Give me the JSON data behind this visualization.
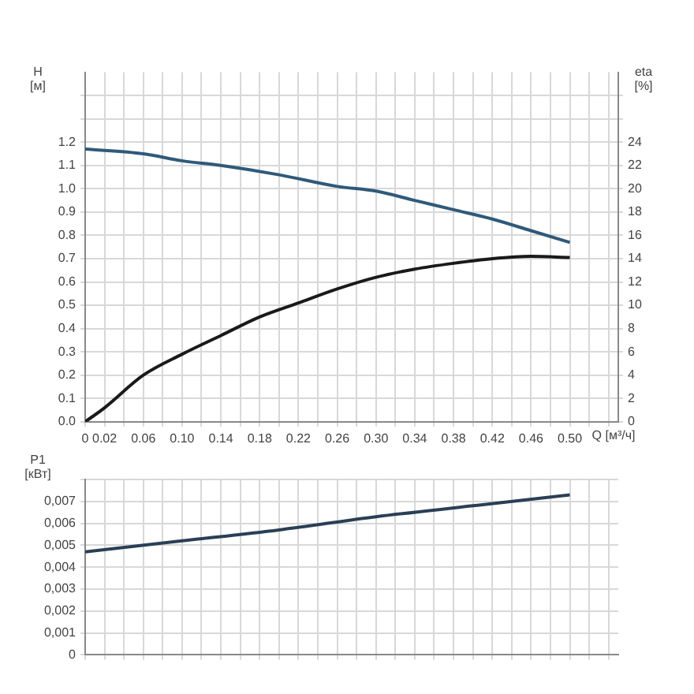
{
  "chart_data": [
    {
      "type": "line",
      "xlabel": "Q [м³/ч]",
      "ylabel": "H [м]",
      "y2label": "eta [%]",
      "grid": true,
      "legend": false,
      "marker": "none",
      "line_style": "solid",
      "xlim": [
        0,
        0.55
      ],
      "xticks": [
        0,
        0.02,
        {
          "value": 0.04,
          "label": null
        },
        0.06,
        {
          "value": 0.08,
          "label": null
        },
        {
          "value": 0.1,
          "label": "0.10"
        },
        {
          "value": 0.12,
          "label": null
        },
        0.14,
        {
          "value": 0.16,
          "label": null
        },
        0.18,
        {
          "value": 0.2,
          "label": null
        },
        0.22,
        {
          "value": 0.24,
          "label": null
        },
        0.26,
        {
          "value": 0.28,
          "label": null
        },
        {
          "value": 0.3,
          "label": "0.30"
        },
        {
          "value": 0.32,
          "label": null
        },
        0.34,
        {
          "value": 0.36,
          "label": null
        },
        0.38,
        {
          "value": 0.4,
          "label": null
        },
        0.42,
        {
          "value": 0.44,
          "label": null
        },
        0.46,
        {
          "value": 0.48,
          "label": null
        },
        {
          "value": 0.5,
          "label": "0.50"
        },
        {
          "value": 0.52,
          "label": null
        },
        {
          "value": 0.54,
          "label": null
        }
      ],
      "ylim": [
        0,
        1.5
      ],
      "yticks": [
        {
          "value": 0,
          "label": "0.0"
        },
        0.1,
        0.2,
        0.3,
        0.4,
        0.5,
        0.6,
        0.7,
        0.8,
        0.9,
        {
          "value": 1,
          "label": "1.0"
        },
        1.1,
        1.2,
        {
          "value": 1.3,
          "label": null
        },
        {
          "value": 1.4,
          "label": null
        }
      ],
      "y2lim": [
        0,
        30
      ],
      "y2ticks": [
        0,
        2,
        4,
        6,
        8,
        10,
        12,
        14,
        16,
        18,
        20,
        22,
        24,
        {
          "value": 26,
          "label": null
        },
        {
          "value": 28,
          "label": null
        }
      ],
      "series": [
        {
          "color": "#2e5a7a",
          "x": [
            0,
            0.06,
            0.1,
            0.14,
            0.2,
            0.26,
            0.3,
            0.34,
            0.38,
            0.42,
            0.46,
            0.5
          ],
          "values": [
            1.17,
            1.15,
            1.12,
            1.1,
            1.06,
            1.01,
            0.99,
            0.95,
            0.91,
            0.87,
            0.82,
            0.77
          ]
        },
        {
          "color": "#1a1a1a",
          "axis": "y2",
          "x": [
            0,
            0.02,
            0.06,
            0.1,
            0.14,
            0.18,
            0.22,
            0.26,
            0.3,
            0.34,
            0.38,
            0.42,
            0.46,
            0.5
          ],
          "values": [
            0,
            1.2,
            4,
            5.8,
            7.4,
            9,
            10.2,
            11.4,
            12.4,
            13.1,
            13.6,
            14,
            14.2,
            14.1
          ]
        }
      ]
    },
    {
      "type": "line",
      "ylabel": "P1 [кВт]",
      "grid": true,
      "legend": false,
      "marker": "none",
      "line_style": "solid",
      "tick_labels": "y",
      "xlim": [
        0,
        0.55
      ],
      "xticks": [
        0,
        0.02,
        0.04,
        0.06,
        0.08,
        0.1,
        0.12,
        0.14,
        0.16,
        0.18,
        0.2,
        0.22,
        0.24,
        0.26,
        0.28,
        0.3,
        0.32,
        0.34,
        0.36,
        0.38,
        0.4,
        0.42,
        0.44,
        0.46,
        0.48,
        0.5,
        0.52,
        0.54
      ],
      "ylim": [
        0,
        0.008
      ],
      "yticks": [
        0,
        {
          "value": 0.001,
          "label": "0,001"
        },
        {
          "value": 0.002,
          "label": "0,002"
        },
        {
          "value": 0.003,
          "label": "0,003"
        },
        {
          "value": 0.004,
          "label": "0,004"
        },
        {
          "value": 0.005,
          "label": "0,005"
        },
        {
          "value": 0.006,
          "label": "0,006"
        },
        {
          "value": 0.007,
          "label": "0,007"
        },
        {
          "value": 0.008,
          "label": null
        }
      ],
      "series": [
        {
          "color": "#2a3f55",
          "x": [
            0,
            0.1,
            0.2,
            0.3,
            0.4,
            0.5
          ],
          "values": [
            0.0047,
            0.0052,
            0.0057,
            0.0063,
            0.0068,
            0.0073
          ]
        }
      ]
    }
  ]
}
